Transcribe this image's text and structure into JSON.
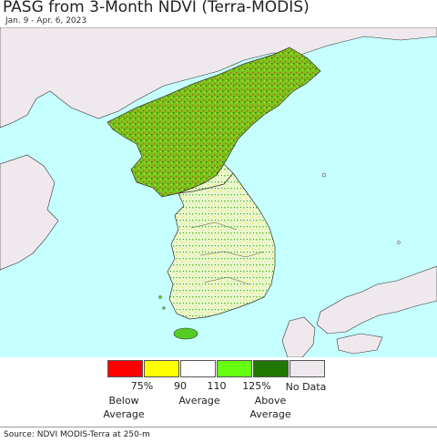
{
  "header": {
    "title": "PASG from 3-Month NDVI (Terra-MODIS)",
    "date_range": "Jan. 9 - Apr. 6, 2023"
  },
  "map": {
    "sea_color": "#c6ffff",
    "neighbor_land_color": "#efe9ee",
    "boundary_color": "#333333"
  },
  "legend": {
    "swatches": [
      {
        "color": "#ff0000",
        "meaning": "Below 75%"
      },
      {
        "color": "#ffff00",
        "meaning": "75-90%"
      },
      {
        "color": "#ffffff",
        "meaning": "90-110%"
      },
      {
        "color": "#66ff11",
        "meaning": "110-125%"
      },
      {
        "color": "#227700",
        "meaning": "Above 125%"
      },
      {
        "color": "#efe9ee",
        "meaning": "No Data"
      }
    ],
    "ticks": [
      "75%",
      "90",
      "110",
      "125%"
    ],
    "categories": {
      "below": "Below\nAverage",
      "average": "Average",
      "above": "Above\nAverage",
      "nodata": "No Data"
    }
  },
  "footer": {
    "source": "Source: NDVI MODIS-Terra at 250-m"
  }
}
